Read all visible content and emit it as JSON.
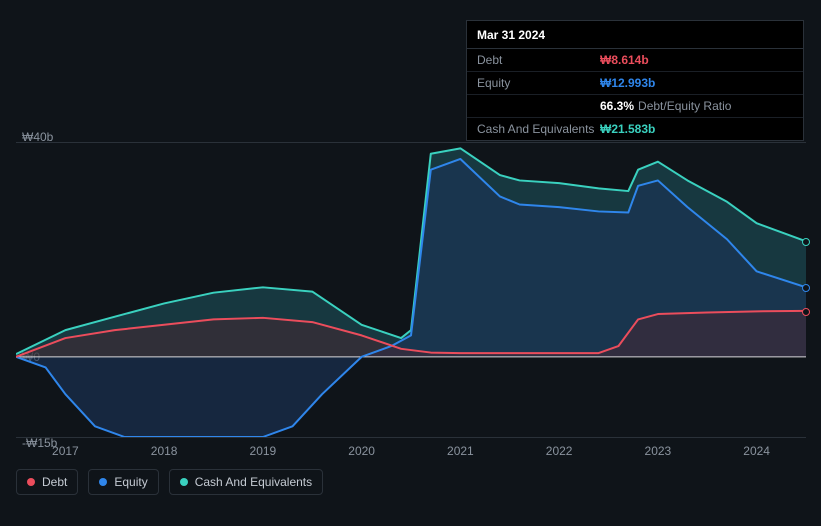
{
  "tooltip": {
    "date": "Mar 31 2024",
    "rows": [
      {
        "label": "Debt",
        "value": "₩8.614b",
        "color": "#eb4d5c"
      },
      {
        "label": "Equity",
        "value": "₩12.993b",
        "color": "#2f86eb"
      },
      {
        "label": "",
        "value": "66.3%",
        "color": "#ffffff",
        "suffix": "Debt/Equity Ratio"
      },
      {
        "label": "Cash And Equivalents",
        "value": "₩21.583b",
        "color": "#3ad1bf"
      }
    ]
  },
  "chart": {
    "type": "area",
    "background_color": "#0f1419",
    "grid_color": "#2a3139",
    "label_color": "#8a939e",
    "label_fontsize": 12,
    "ylim": [
      -15,
      40
    ],
    "y_ticks": [
      {
        "v": 40,
        "label": "₩40b"
      },
      {
        "v": 0,
        "label": "₩0"
      },
      {
        "v": -15,
        "label": "-₩15b"
      }
    ],
    "xlim": [
      2016.5,
      2024.5
    ],
    "x_ticks": [
      2017,
      2018,
      2019,
      2020,
      2021,
      2022,
      2023,
      2024
    ],
    "zero_line_color": "#f8f8f8",
    "series": [
      {
        "name": "Cash And Equivalents",
        "stroke": "#3ad1bf",
        "fill": "#1f5560",
        "fill_opacity": 0.55,
        "line_width": 2,
        "points": [
          [
            2016.5,
            0.5
          ],
          [
            2017,
            5
          ],
          [
            2017.5,
            7.5
          ],
          [
            2018,
            10
          ],
          [
            2018.5,
            12
          ],
          [
            2019,
            13
          ],
          [
            2019.5,
            12.2
          ],
          [
            2020,
            6
          ],
          [
            2020.4,
            3.5
          ],
          [
            2020.5,
            5
          ],
          [
            2020.7,
            38
          ],
          [
            2021,
            39
          ],
          [
            2021.4,
            34
          ],
          [
            2021.6,
            33
          ],
          [
            2022,
            32.5
          ],
          [
            2022.4,
            31.5
          ],
          [
            2022.7,
            31
          ],
          [
            2022.8,
            35
          ],
          [
            2023,
            36.5
          ],
          [
            2023.3,
            33
          ],
          [
            2023.7,
            29
          ],
          [
            2024,
            25
          ],
          [
            2024.5,
            21.6
          ]
        ]
      },
      {
        "name": "Equity",
        "stroke": "#2f86eb",
        "fill": "#1a3358",
        "fill_opacity": 0.6,
        "line_width": 2,
        "points": [
          [
            2016.5,
            0
          ],
          [
            2016.8,
            -2
          ],
          [
            2017,
            -7
          ],
          [
            2017.3,
            -13
          ],
          [
            2017.6,
            -15
          ],
          [
            2018,
            -15
          ],
          [
            2018.5,
            -15
          ],
          [
            2019,
            -15
          ],
          [
            2019.3,
            -13
          ],
          [
            2019.6,
            -7
          ],
          [
            2020,
            0
          ],
          [
            2020.3,
            2
          ],
          [
            2020.5,
            4
          ],
          [
            2020.7,
            35
          ],
          [
            2021,
            37
          ],
          [
            2021.4,
            30
          ],
          [
            2021.6,
            28.5
          ],
          [
            2022,
            28
          ],
          [
            2022.4,
            27.2
          ],
          [
            2022.7,
            27
          ],
          [
            2022.8,
            32
          ],
          [
            2023,
            33
          ],
          [
            2023.3,
            28
          ],
          [
            2023.7,
            22
          ],
          [
            2024,
            16
          ],
          [
            2024.5,
            13
          ]
        ]
      },
      {
        "name": "Debt",
        "stroke": "#eb4d5c",
        "fill": "#4a2530",
        "fill_opacity": 0.5,
        "line_width": 2,
        "points": [
          [
            2016.5,
            0
          ],
          [
            2017,
            3.5
          ],
          [
            2017.5,
            5
          ],
          [
            2018,
            6
          ],
          [
            2018.5,
            7
          ],
          [
            2019,
            7.3
          ],
          [
            2019.5,
            6.5
          ],
          [
            2020,
            4
          ],
          [
            2020.4,
            1.5
          ],
          [
            2020.7,
            0.8
          ],
          [
            2021,
            0.7
          ],
          [
            2021.5,
            0.7
          ],
          [
            2022,
            0.7
          ],
          [
            2022.4,
            0.7
          ],
          [
            2022.6,
            2
          ],
          [
            2022.8,
            7
          ],
          [
            2023,
            8
          ],
          [
            2023.5,
            8.3
          ],
          [
            2024,
            8.5
          ],
          [
            2024.5,
            8.6
          ]
        ]
      }
    ],
    "legend": [
      {
        "label": "Debt",
        "color": "#eb4d5c"
      },
      {
        "label": "Equity",
        "color": "#2f86eb"
      },
      {
        "label": "Cash And Equivalents",
        "color": "#3ad1bf"
      }
    ]
  }
}
